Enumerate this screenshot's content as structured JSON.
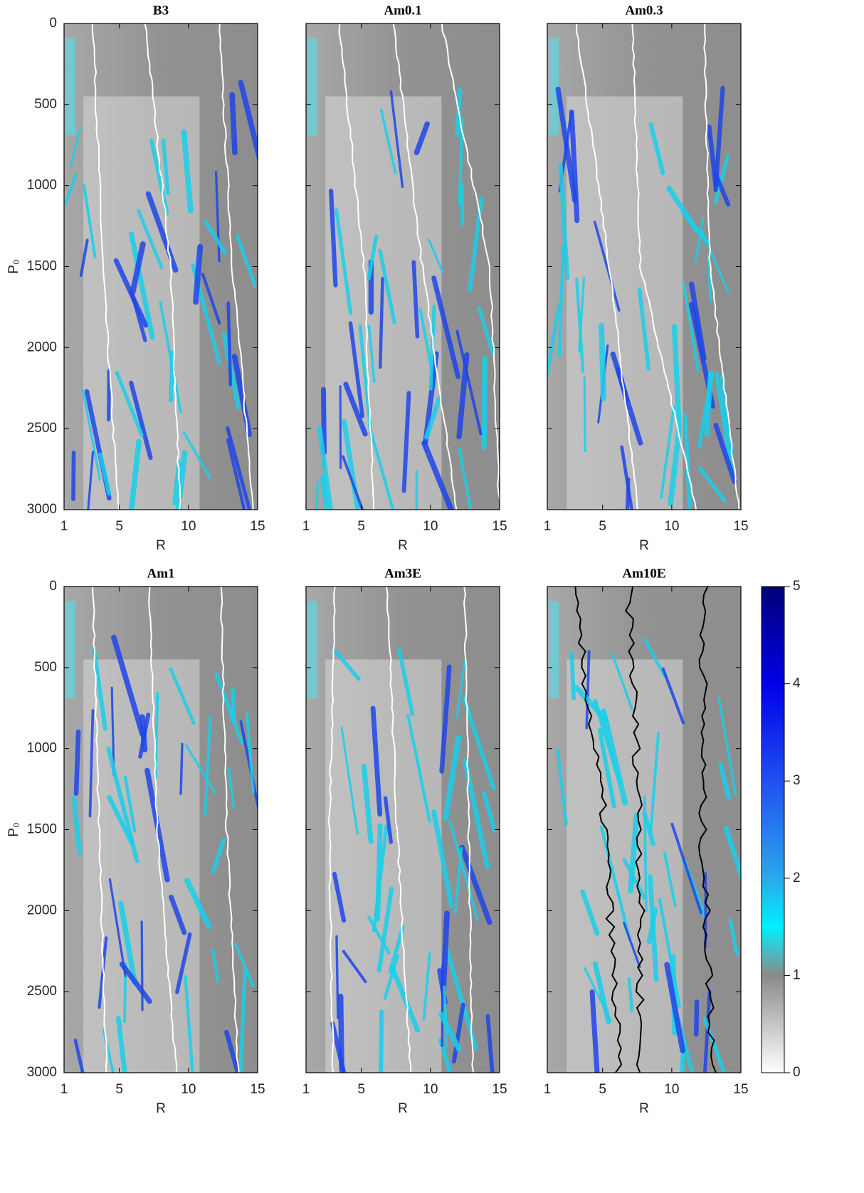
{
  "chart_data": [
    {
      "type": "heatmap",
      "title": "B3",
      "xlabel": "R",
      "ylabel": "P₀",
      "xlim": [
        1,
        15
      ],
      "xticks": [
        1,
        5,
        10,
        15
      ],
      "ylim": [
        0,
        3000
      ],
      "y_inverted": true,
      "yticks": [
        0,
        500,
        1000,
        1500,
        2000,
        2500,
        3000
      ],
      "ytick_labels": true,
      "contour_color": "#ffffff"
    },
    {
      "type": "heatmap",
      "title": "Am0.1",
      "xlabel": "R",
      "xlim": [
        1,
        15
      ],
      "xticks": [
        1,
        5,
        10,
        15
      ],
      "ylim": [
        0,
        3000
      ],
      "y_inverted": true,
      "yticks": [
        0,
        500,
        1000,
        1500,
        2000,
        2500,
        3000
      ],
      "ytick_labels": false,
      "contour_color": "#ffffff"
    },
    {
      "type": "heatmap",
      "title": "Am0.3",
      "xlabel": "R",
      "xlim": [
        1,
        15
      ],
      "xticks": [
        1,
        5,
        10,
        15
      ],
      "ylim": [
        0,
        3000
      ],
      "y_inverted": true,
      "yticks": [
        0,
        500,
        1000,
        1500,
        2000,
        2500,
        3000
      ],
      "ytick_labels": false,
      "contour_color": "#ffffff"
    },
    {
      "type": "heatmap",
      "title": "Am1",
      "xlabel": "R",
      "ylabel": "P₀",
      "xlim": [
        1,
        15
      ],
      "xticks": [
        1,
        5,
        10,
        15
      ],
      "ylim": [
        0,
        3000
      ],
      "y_inverted": true,
      "yticks": [
        0,
        500,
        1000,
        1500,
        2000,
        2500,
        3000
      ],
      "ytick_labels": true,
      "contour_color": "#ffffff"
    },
    {
      "type": "heatmap",
      "title": "Am3E",
      "xlabel": "R",
      "xlim": [
        1,
        15
      ],
      "xticks": [
        1,
        5,
        10,
        15
      ],
      "ylim": [
        0,
        3000
      ],
      "y_inverted": true,
      "yticks": [
        0,
        500,
        1000,
        1500,
        2000,
        2500,
        3000
      ],
      "ytick_labels": false,
      "contour_color": "#ffffff"
    },
    {
      "type": "heatmap",
      "title": "Am10E",
      "xlabel": "R",
      "xlim": [
        1,
        15
      ],
      "xticks": [
        1,
        5,
        10,
        15
      ],
      "ylim": [
        0,
        3000
      ],
      "y_inverted": true,
      "yticks": [
        0,
        500,
        1000,
        1500,
        2000,
        2500,
        3000
      ],
      "ytick_labels": false,
      "contour_color": "#000000",
      "colorbar": {
        "clim": [
          0,
          5
        ],
        "ticks": [
          0,
          1,
          2,
          3,
          4,
          5
        ]
      }
    }
  ]
}
